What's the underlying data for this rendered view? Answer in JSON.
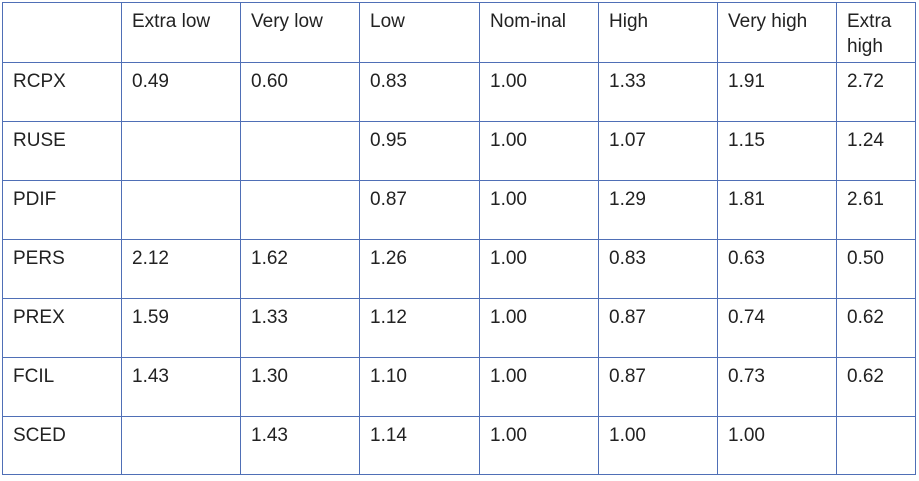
{
  "table": {
    "columns": [
      "",
      "Extra low",
      "Very low",
      "Low",
      "Nom-inal",
      "High",
      "Very high",
      "Extra high"
    ],
    "rows": [
      {
        "label": "RCPX",
        "values": [
          "0.49",
          "0.60",
          "0.83",
          "1.00",
          "1.33",
          "1.91",
          "2.72"
        ]
      },
      {
        "label": "RUSE",
        "values": [
          "",
          "",
          "0.95",
          "1.00",
          "1.07",
          "1.15",
          "1.24"
        ]
      },
      {
        "label": "PDIF",
        "values": [
          "",
          "",
          "0.87",
          "1.00",
          "1.29",
          "1.81",
          "2.61"
        ]
      },
      {
        "label": "PERS",
        "values": [
          "2.12",
          "1.62",
          "1.26",
          "1.00",
          "0.83",
          "0.63",
          "0.50"
        ]
      },
      {
        "label": "PREX",
        "values": [
          "1.59",
          "1.33",
          "1.12",
          "1.00",
          "0.87",
          "0.74",
          "0.62"
        ]
      },
      {
        "label": "FCIL",
        "values": [
          "1.43",
          "1.30",
          "1.10",
          "1.00",
          "0.87",
          "0.73",
          "0.62"
        ]
      },
      {
        "label": "SCED",
        "values": [
          "",
          "1.43",
          "1.14",
          "1.00",
          "1.00",
          "1.00",
          ""
        ]
      }
    ]
  }
}
